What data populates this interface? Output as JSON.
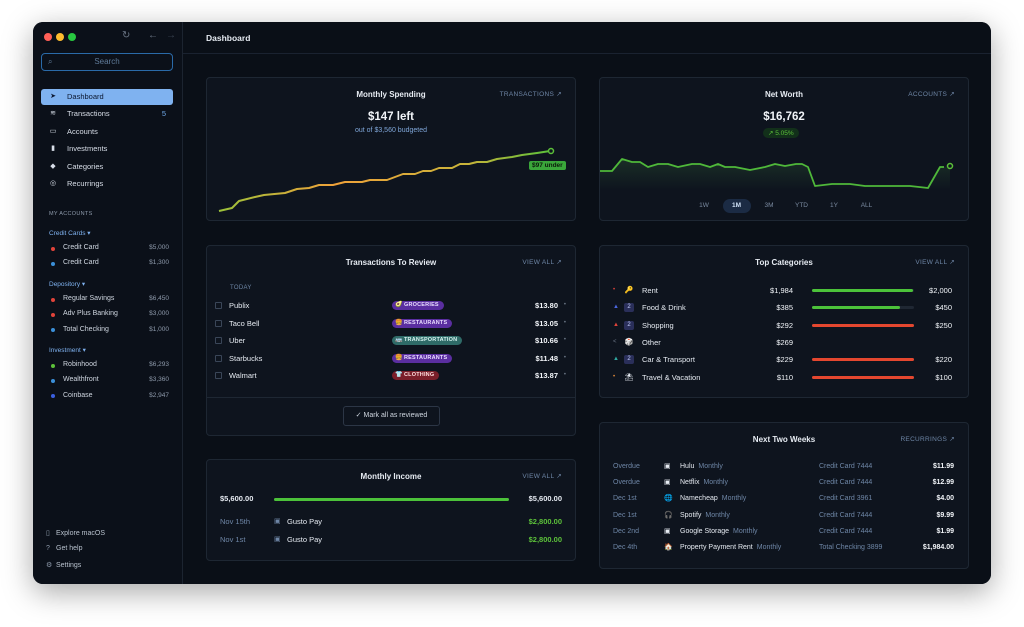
{
  "window": {
    "title": "Dashboard"
  },
  "sidebar": {
    "search_placeholder": "Search",
    "nav": [
      {
        "label": "Dashboard",
        "icon": "location-arrow-icon",
        "active": true
      },
      {
        "label": "Transactions",
        "icon": "stack-icon",
        "count": "5"
      },
      {
        "label": "Accounts",
        "icon": "wallet-icon"
      },
      {
        "label": "Investments",
        "icon": "bar-chart-icon"
      },
      {
        "label": "Categories",
        "icon": "tag-icon"
      },
      {
        "label": "Recurrings",
        "icon": "recurring-icon"
      }
    ],
    "my_accounts_label": "MY ACCOUNTS",
    "groups": [
      {
        "label": "Credit Cards",
        "accounts": [
          {
            "name": "Credit Card",
            "value": "$5,000",
            "color": "#e0433a"
          },
          {
            "name": "Credit Card",
            "value": "$1,300",
            "color": "#3b8fd8"
          }
        ]
      },
      {
        "label": "Depository",
        "accounts": [
          {
            "name": "Regular Savings",
            "value": "$6,450",
            "color": "#e0433a"
          },
          {
            "name": "Adv Plus Banking",
            "value": "$3,000",
            "color": "#e0433a"
          },
          {
            "name": "Total Checking",
            "value": "$1,000",
            "color": "#3b8fd8"
          }
        ]
      },
      {
        "label": "Investment",
        "accounts": [
          {
            "name": "Robinhood",
            "value": "$6,293",
            "color": "#5cc13a"
          },
          {
            "name": "Wealthfront",
            "value": "$3,360",
            "color": "#3b8fd8"
          },
          {
            "name": "Coinbase",
            "value": "$2,947",
            "color": "#3b5fe0"
          }
        ]
      }
    ],
    "footer": [
      {
        "label": "Explore macOS",
        "icon": "phone-icon"
      },
      {
        "label": "Get help",
        "icon": "help-icon"
      },
      {
        "label": "Settings",
        "icon": "gear-icon"
      }
    ]
  },
  "spending": {
    "title": "Monthly Spending",
    "link": "TRANSACTIONS ↗",
    "amount": "$147 left",
    "subtitle": "out of $3,560 budgeted",
    "tag": "$97 under"
  },
  "networth": {
    "title": "Net Worth",
    "link": "ACCOUNTS ↗",
    "amount": "$16,762",
    "change": "↗ 5.05%",
    "ranges": [
      "1W",
      "1M",
      "3M",
      "YTD",
      "1Y",
      "ALL"
    ],
    "selected_range": "1M"
  },
  "review": {
    "title": "Transactions To Review",
    "link": "VIEW ALL ↗",
    "day": "TODAY",
    "rows": [
      {
        "name": "Publix",
        "category": "GROCERIES",
        "emoji": "🥑",
        "bg": "#5a2ea0",
        "fg": "#e8dcff",
        "amount": "$13.80"
      },
      {
        "name": "Taco Bell",
        "category": "RESTAURANTS",
        "emoji": "🍔",
        "bg": "#5a2ea0",
        "fg": "#e8dcff",
        "amount": "$13.05"
      },
      {
        "name": "Uber",
        "category": "TRANSPORTATION",
        "emoji": "🚌",
        "bg": "#2f6b68",
        "fg": "#d8f4f1",
        "amount": "$10.66"
      },
      {
        "name": "Starbucks",
        "category": "RESTAURANTS",
        "emoji": "🍔",
        "bg": "#5a2ea0",
        "fg": "#e8dcff",
        "amount": "$11.48"
      },
      {
        "name": "Walmart",
        "category": "CLOTHING",
        "emoji": "👕",
        "bg": "#7a1f2a",
        "fg": "#ffdede",
        "amount": "$13.87"
      }
    ],
    "mark_all": "Mark all as reviewed"
  },
  "income": {
    "title": "Monthly Income",
    "link": "VIEW ALL ↗",
    "left_amount": "$5,600.00",
    "right_amount": "$5,600.00",
    "progress": 1.0,
    "rows": [
      {
        "date": "Nov 15th",
        "name": "Gusto Pay",
        "amount": "$2,800.00"
      },
      {
        "date": "Nov 1st",
        "name": "Gusto Pay",
        "amount": "$2,800.00"
      }
    ]
  },
  "top_categories": {
    "title": "Top Categories",
    "link": "VIEW ALL ↗",
    "rows": [
      {
        "bullet": "•",
        "bullet_color": "#e0433a",
        "icon": "🔑",
        "name": "Rent",
        "spent": "$1,984",
        "budget": "$2,000",
        "fraction": 0.99,
        "color": "#4cc23a"
      },
      {
        "bullet": "▲",
        "bullet_color": "#4a66e0",
        "icon": "2",
        "name": "Food & Drink",
        "spent": "$385",
        "budget": "$450",
        "fraction": 0.86,
        "color": "#4cc23a"
      },
      {
        "bullet": "▲",
        "bullet_color": "#e0433a",
        "icon": "2",
        "name": "Shopping",
        "spent": "$292",
        "budget": "$250",
        "fraction": 1.0,
        "color": "#e4472f"
      },
      {
        "bullet": "<",
        "bullet_color": "#6c7787",
        "icon": "🎲",
        "name": "Other",
        "spent": "$269",
        "budget": "",
        "fraction": 0,
        "color": "#4cc23a"
      },
      {
        "bullet": "▲",
        "bullet_color": "#2fa8a0",
        "icon": "2",
        "name": "Car & Transport",
        "spent": "$229",
        "budget": "$220",
        "fraction": 1.0,
        "color": "#e4472f"
      },
      {
        "bullet": "•",
        "bullet_color": "#e08a3a",
        "icon": "⛱",
        "name": "Travel & Vacation",
        "spent": "$110",
        "budget": "$100",
        "fraction": 1.0,
        "color": "#e4472f"
      }
    ]
  },
  "next_two_weeks": {
    "title": "Next Two Weeks",
    "link": "RECURRINGS ↗",
    "rows": [
      {
        "date": "Overdue",
        "icon": "▣",
        "name": "Hulu",
        "freq": "Monthly",
        "account": "Credit Card 7444",
        "amount": "$11.99"
      },
      {
        "date": "Overdue",
        "icon": "▣",
        "name": "Netflix",
        "freq": "Monthly",
        "account": "Credit Card 7444",
        "amount": "$12.99"
      },
      {
        "date": "Dec 1st",
        "icon": "🌐",
        "name": "Namecheap",
        "freq": "Monthly",
        "account": "Credit Card 3961",
        "amount": "$4.00"
      },
      {
        "date": "Dec 1st",
        "icon": "🎧",
        "name": "Spotify",
        "freq": "Monthly",
        "account": "Credit Card 7444",
        "amount": "$9.99"
      },
      {
        "date": "Dec 2nd",
        "icon": "▣",
        "name": "Google Storage",
        "freq": "Monthly",
        "account": "Credit Card 7444",
        "amount": "$1.99"
      },
      {
        "date": "Dec 4th",
        "icon": "🏠",
        "name": "Property Payment Rent",
        "freq": "Monthly",
        "account": "Total Checking 3899",
        "amount": "$1,984.00"
      }
    ]
  }
}
